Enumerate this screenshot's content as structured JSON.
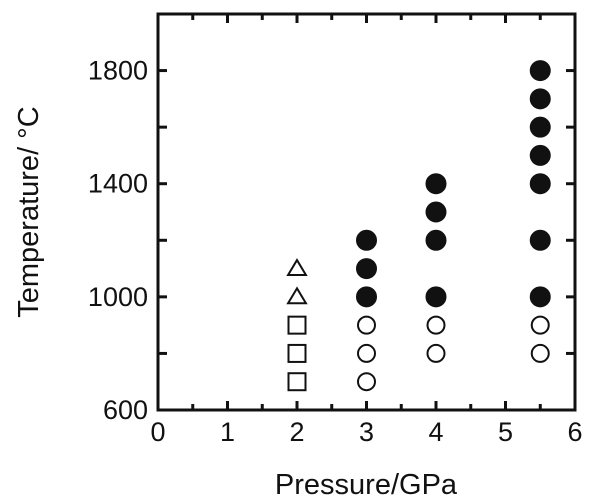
{
  "chart_data": {
    "type": "scatter",
    "xlabel": "Pressure/GPa",
    "ylabel": "Temperature/ °C",
    "xlim": [
      0,
      6
    ],
    "ylim": [
      600,
      2000
    ],
    "x_ticks": [
      "0",
      "1",
      "2",
      "3",
      "4",
      "5",
      "6"
    ],
    "y_ticks": [
      "600",
      "1000",
      "1400",
      "1800"
    ],
    "grid": false,
    "series": [
      {
        "marker": "triangle",
        "points": [
          [
            2,
            1100
          ],
          [
            2,
            1000
          ]
        ]
      },
      {
        "marker": "square",
        "points": [
          [
            2,
            900
          ],
          [
            2,
            800
          ],
          [
            2,
            700
          ]
        ]
      },
      {
        "marker": "open-circle",
        "points": [
          [
            3,
            900
          ],
          [
            3,
            800
          ],
          [
            3,
            700
          ],
          [
            4,
            900
          ],
          [
            4,
            800
          ],
          [
            5.5,
            900
          ],
          [
            5.5,
            800
          ]
        ]
      },
      {
        "marker": "filled-circle",
        "points": [
          [
            3,
            1200
          ],
          [
            3,
            1100
          ],
          [
            3,
            1000
          ],
          [
            4,
            1400
          ],
          [
            4,
            1300
          ],
          [
            4,
            1200
          ],
          [
            4,
            1000
          ],
          [
            5.5,
            1800
          ],
          [
            5.5,
            1700
          ],
          [
            5.5,
            1600
          ],
          [
            5.5,
            1500
          ],
          [
            5.5,
            1400
          ],
          [
            5.5,
            1200
          ],
          [
            5.5,
            1000
          ]
        ]
      }
    ]
  }
}
